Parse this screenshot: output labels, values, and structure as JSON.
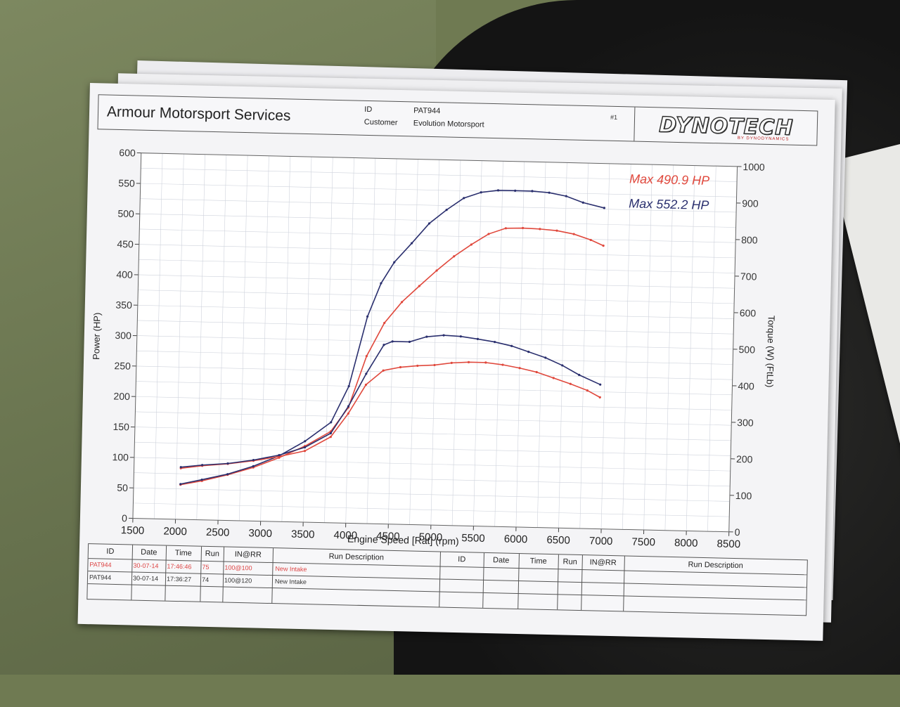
{
  "header": {
    "company": "Armour Motorsport Services",
    "id_label": "ID",
    "id_value": "PAT944",
    "customer_label": "Customer",
    "customer_value": "Evolution Motorsport",
    "run_number": "#1",
    "logo": "DYNOTECH",
    "logo_sub": "BY DYNODYNAMICS"
  },
  "legend": {
    "red": "Max 490.9 HP",
    "blue": "Max 552.2 HP"
  },
  "colors": {
    "red": "#e0483c",
    "blue": "#2a2f6e",
    "grid": "#cfd3dc"
  },
  "table": {
    "headers_left": [
      "ID",
      "Date",
      "Time",
      "Run",
      "IN@RR",
      "Run Description"
    ],
    "headers_right": [
      "ID",
      "Date",
      "Time",
      "Run",
      "IN@RR",
      "Run Description"
    ],
    "rows": [
      {
        "id": "PAT944",
        "date": "30-07-14",
        "time": "17:46:46",
        "run": "75",
        "inrr": "100@100",
        "desc": "New Intake"
      },
      {
        "id": "PAT944",
        "date": "30-07-14",
        "time": "17:36:27",
        "run": "74",
        "inrr": "100@120",
        "desc": "New Intake"
      }
    ]
  },
  "chart_data": {
    "type": "line",
    "xlabel": "Engine Speed [Rat] (rpm)",
    "ylabel": "Power (HP)",
    "y2label": "Torque (W) (FtLb)",
    "xlim": [
      1500,
      8500
    ],
    "ylim": [
      0,
      600
    ],
    "y2lim": [
      0,
      1000
    ],
    "x_ticks": [
      1500,
      2000,
      2500,
      3000,
      3500,
      4000,
      4500,
      5000,
      5500,
      6000,
      6500,
      7000,
      7500,
      8000,
      8500
    ],
    "y_ticks": [
      0,
      50,
      100,
      150,
      200,
      250,
      300,
      350,
      400,
      450,
      500,
      550,
      600
    ],
    "y2_ticks": [
      0,
      100,
      200,
      300,
      400,
      500,
      600,
      700,
      800,
      900,
      1000
    ],
    "grid": true,
    "series": [
      {
        "name": "Max 490.9 HP",
        "color": "red",
        "kind": "power",
        "axis": "left",
        "x": [
          2050,
          2300,
          2600,
          2900,
          3200,
          3500,
          3800,
          4000,
          4200,
          4400,
          4600,
          4800,
          5000,
          5200,
          5400,
          5600,
          5800,
          6000,
          6200,
          6400,
          6600,
          6800,
          6950
        ],
        "y": [
          57,
          64,
          75,
          88,
          105,
          125,
          150,
          190,
          275,
          330,
          365,
          392,
          418,
          442,
          462,
          480,
          490,
          491,
          490,
          488,
          483,
          474,
          465
        ]
      },
      {
        "name": "Max 552.2 HP",
        "color": "blue",
        "kind": "power",
        "axis": "left",
        "x": [
          2050,
          2300,
          2600,
          2900,
          3200,
          3500,
          3800,
          4000,
          4200,
          4350,
          4500,
          4700,
          4900,
          5100,
          5300,
          5500,
          5700,
          5900,
          6100,
          6300,
          6500,
          6700,
          6950
        ],
        "y": [
          58,
          66,
          76,
          90,
          108,
          133,
          165,
          225,
          340,
          395,
          430,
          462,
          495,
          518,
          538,
          548,
          552,
          552,
          552,
          550,
          545,
          535,
          527
        ]
      },
      {
        "name": "",
        "color": "red",
        "kind": "torque",
        "axis": "right",
        "x": [
          2050,
          2300,
          2600,
          2900,
          3200,
          3500,
          3800,
          4000,
          4200,
          4400,
          4600,
          4800,
          5000,
          5200,
          5400,
          5600,
          5800,
          6000,
          6200,
          6400,
          6600,
          6800,
          6950
        ],
        "y": [
          140,
          148,
          155,
          165,
          178,
          195,
          235,
          300,
          380,
          420,
          430,
          435,
          438,
          445,
          448,
          448,
          443,
          435,
          425,
          410,
          395,
          378,
          360
        ]
      },
      {
        "name": "",
        "color": "blue",
        "kind": "torque",
        "axis": "right",
        "x": [
          2050,
          2300,
          2600,
          2900,
          3200,
          3500,
          3800,
          4000,
          4200,
          4400,
          4500,
          4700,
          4900,
          5100,
          5300,
          5500,
          5700,
          5900,
          6100,
          6300,
          6500,
          6700,
          6950
        ],
        "y": [
          143,
          150,
          156,
          167,
          182,
          205,
          245,
          320,
          410,
          490,
          500,
          500,
          515,
          520,
          518,
          512,
          505,
          495,
          480,
          465,
          445,
          420,
          395
        ]
      }
    ]
  }
}
